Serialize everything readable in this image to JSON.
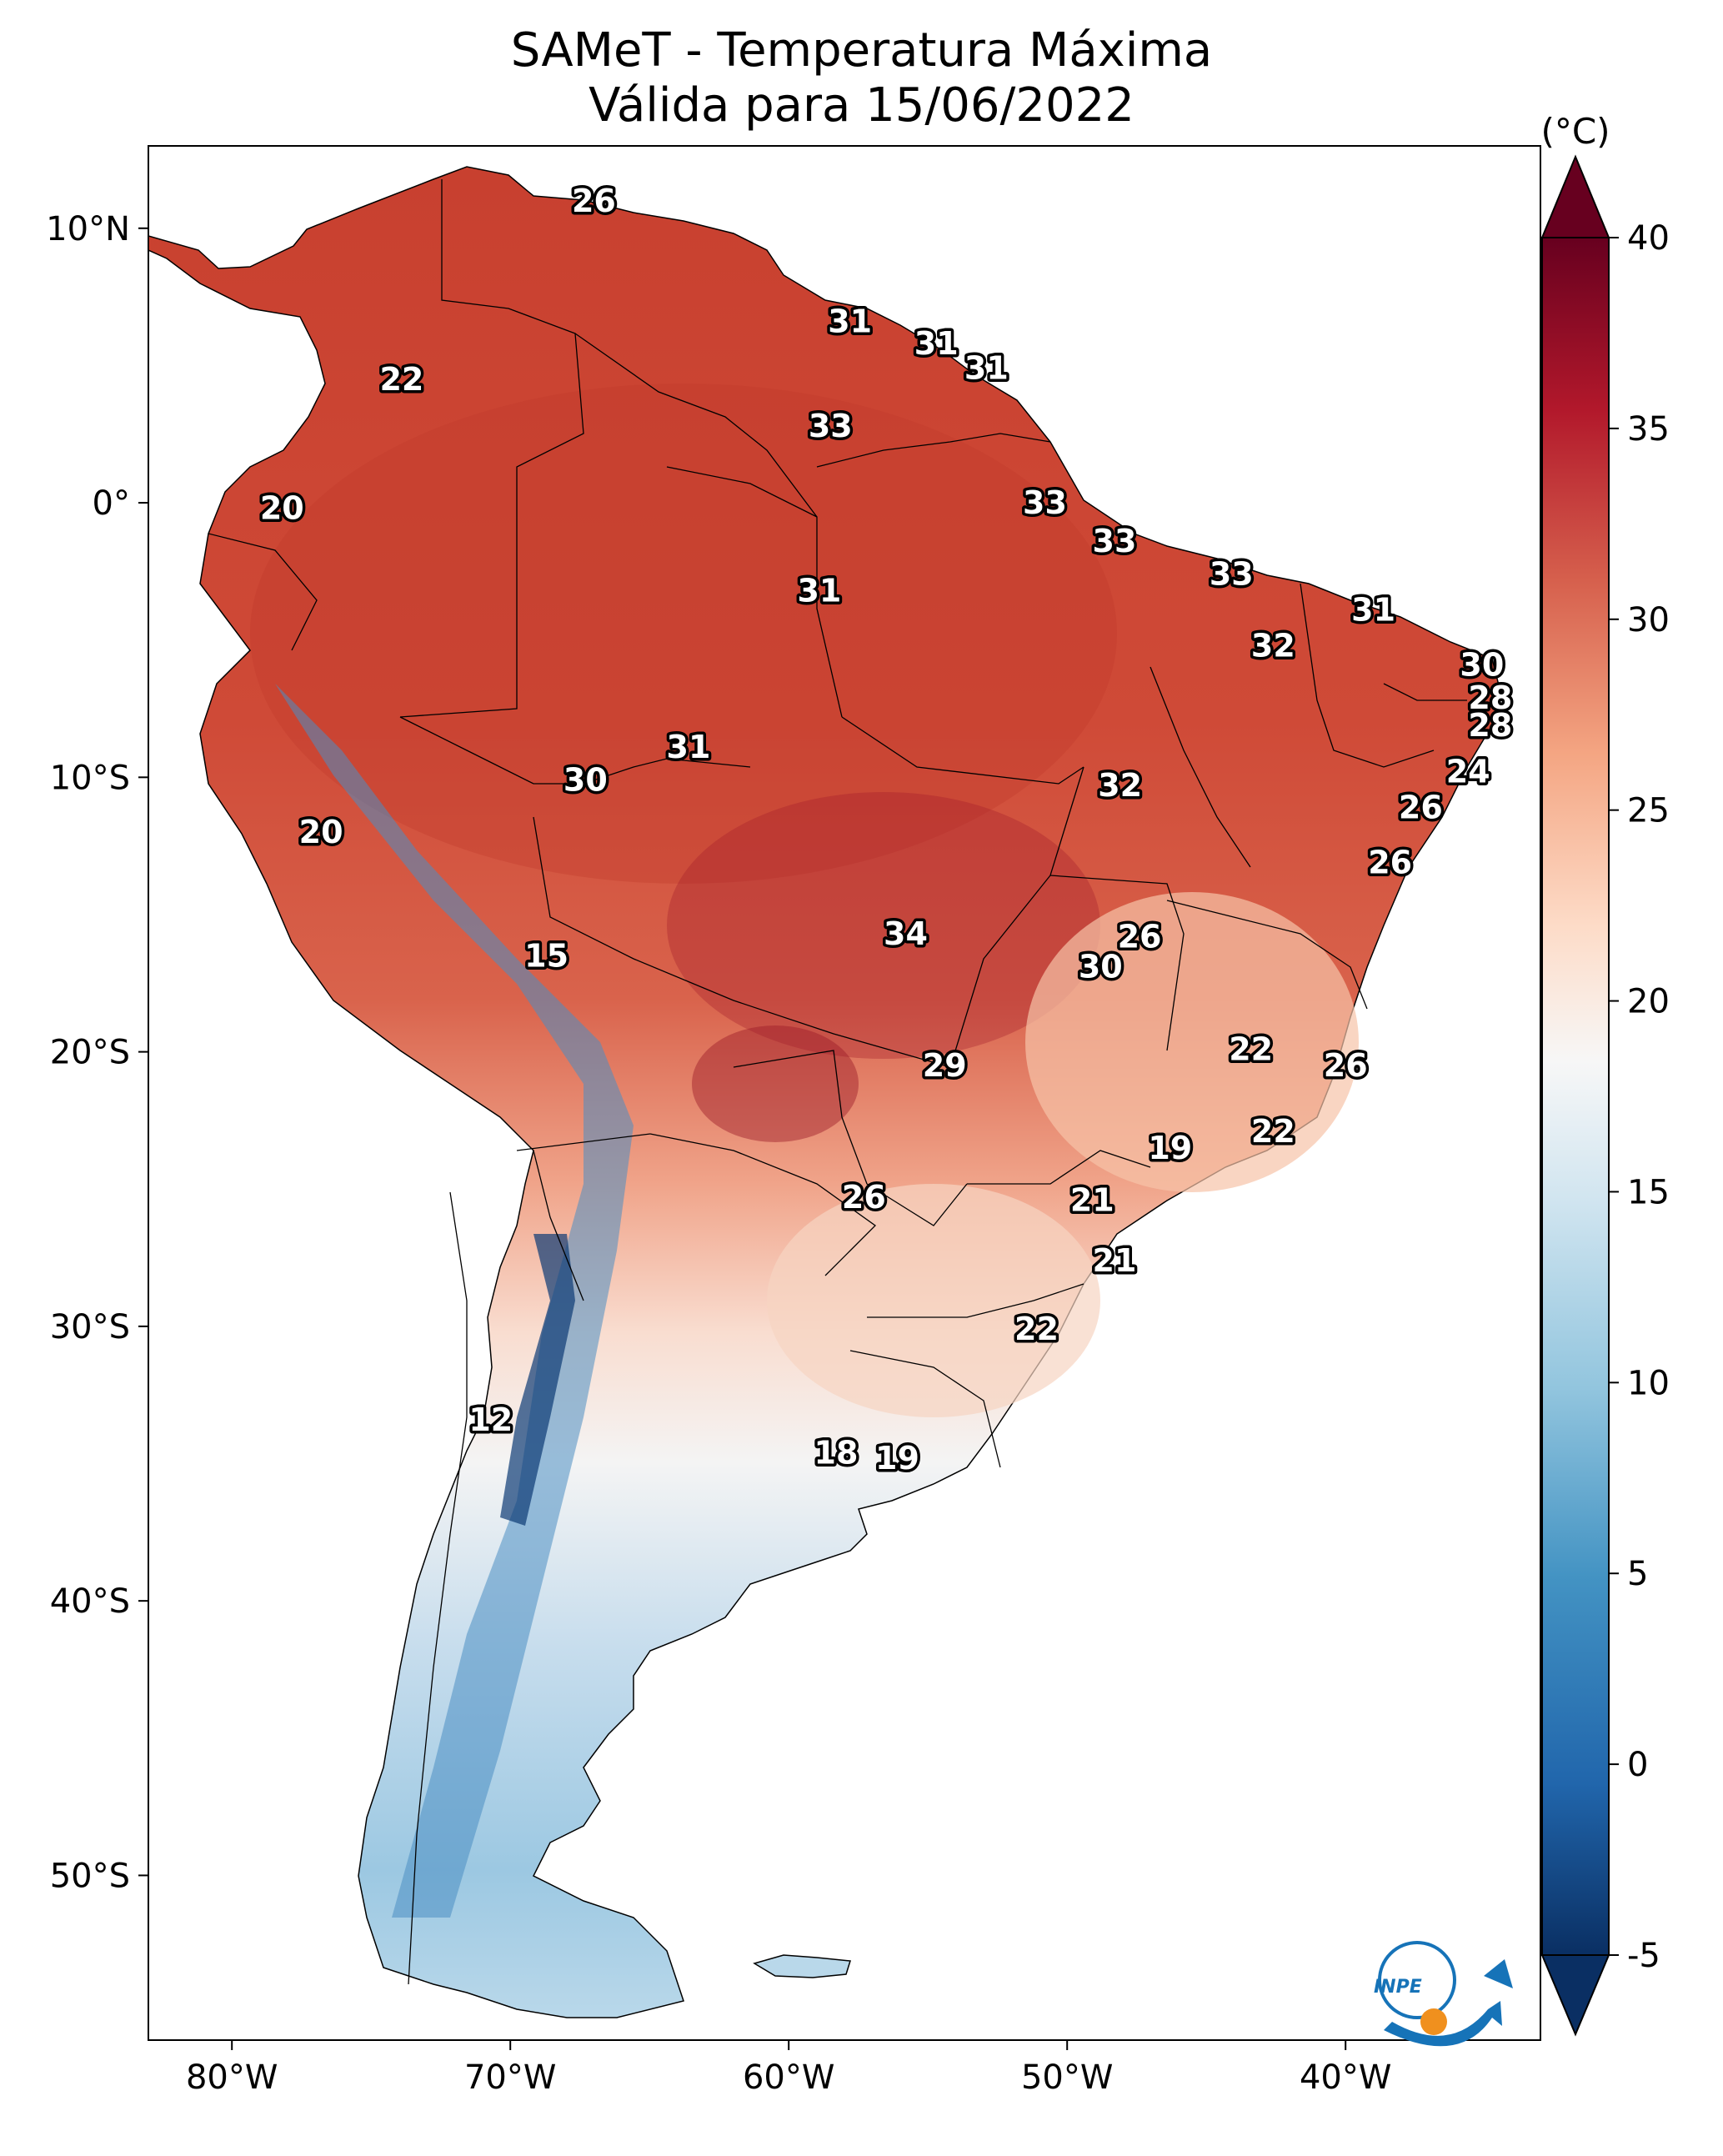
{
  "title_line1": "SAMeT - Temperatura Máxima",
  "title_line2": "Válida para 15/06/2022",
  "map_data": {
    "lon_range": [
      -83,
      -33
    ],
    "lat_range": [
      -56,
      13
    ],
    "lon_ticks": [
      "80°W",
      "70°W",
      "60°W",
      "50°W",
      "40°W"
    ],
    "lat_ticks": [
      "10°N",
      "0°",
      "10°S",
      "20°S",
      "30°S",
      "40°S",
      "50°S"
    ],
    "colorbar": {
      "unit": "(°C)",
      "min": -5,
      "max": 40,
      "ticks": [
        "-5",
        "0",
        "5",
        "10",
        "15",
        "20",
        "25",
        "30",
        "35",
        "40"
      ],
      "colors": [
        "#0a2f63",
        "#2166ac",
        "#4393c3",
        "#92c5de",
        "#d1e5f0",
        "#f7f7f7",
        "#fddbc7",
        "#f4a582",
        "#d6604d",
        "#b2182b",
        "#67001f"
      ]
    },
    "labels": [
      {
        "v": "26",
        "lon": -67,
        "lat": 11
      },
      {
        "v": "22",
        "lon": -73.9,
        "lat": 4.5
      },
      {
        "v": "31",
        "lon": -57.8,
        "lat": 6.6
      },
      {
        "v": "31",
        "lon": -54.7,
        "lat": 5.8
      },
      {
        "v": "31",
        "lon": -52.9,
        "lat": 4.9
      },
      {
        "v": "33",
        "lon": -58.5,
        "lat": 2.8
      },
      {
        "v": "20",
        "lon": -78.2,
        "lat": -0.2
      },
      {
        "v": "33",
        "lon": -50.8,
        "lat": 0
      },
      {
        "v": "33",
        "lon": -48.3,
        "lat": -1.4
      },
      {
        "v": "33",
        "lon": -44.1,
        "lat": -2.6
      },
      {
        "v": "31",
        "lon": -58.9,
        "lat": -3.2
      },
      {
        "v": "31",
        "lon": -39,
        "lat": -3.9
      },
      {
        "v": "32",
        "lon": -42.6,
        "lat": -5.2
      },
      {
        "v": "30",
        "lon": -35.1,
        "lat": -5.9
      },
      {
        "v": "28",
        "lon": -34.8,
        "lat": -7.1
      },
      {
        "v": "28",
        "lon": -34.8,
        "lat": -8.1
      },
      {
        "v": "31",
        "lon": -63.6,
        "lat": -8.9
      },
      {
        "v": "30",
        "lon": -67.3,
        "lat": -10.1
      },
      {
        "v": "32",
        "lon": -48.1,
        "lat": -10.3
      },
      {
        "v": "24",
        "lon": -35.6,
        "lat": -9.8
      },
      {
        "v": "26",
        "lon": -37.3,
        "lat": -11.1
      },
      {
        "v": "20",
        "lon": -76.8,
        "lat": -12
      },
      {
        "v": "26",
        "lon": -38.4,
        "lat": -13.1
      },
      {
        "v": "15",
        "lon": -68.7,
        "lat": -16.5
      },
      {
        "v": "34",
        "lon": -55.8,
        "lat": -15.7
      },
      {
        "v": "26",
        "lon": -47.4,
        "lat": -15.8
      },
      {
        "v": "30",
        "lon": -48.8,
        "lat": -16.9
      },
      {
        "v": "22",
        "lon": -43.4,
        "lat": -19.9
      },
      {
        "v": "26",
        "lon": -40,
        "lat": -20.5
      },
      {
        "v": "29",
        "lon": -54.4,
        "lat": -20.5
      },
      {
        "v": "22",
        "lon": -42.6,
        "lat": -22.9
      },
      {
        "v": "19",
        "lon": -46.3,
        "lat": -23.5
      },
      {
        "v": "26",
        "lon": -57.3,
        "lat": -25.3
      },
      {
        "v": "21",
        "lon": -49.1,
        "lat": -25.4
      },
      {
        "v": "21",
        "lon": -48.3,
        "lat": -27.6
      },
      {
        "v": "22",
        "lon": -51.1,
        "lat": -30.1
      },
      {
        "v": "12",
        "lon": -70.7,
        "lat": -33.4
      },
      {
        "v": "18",
        "lon": -58.3,
        "lat": -34.6
      },
      {
        "v": "19",
        "lon": -56.1,
        "lat": -34.8
      }
    ],
    "logo_text": "INPE"
  }
}
